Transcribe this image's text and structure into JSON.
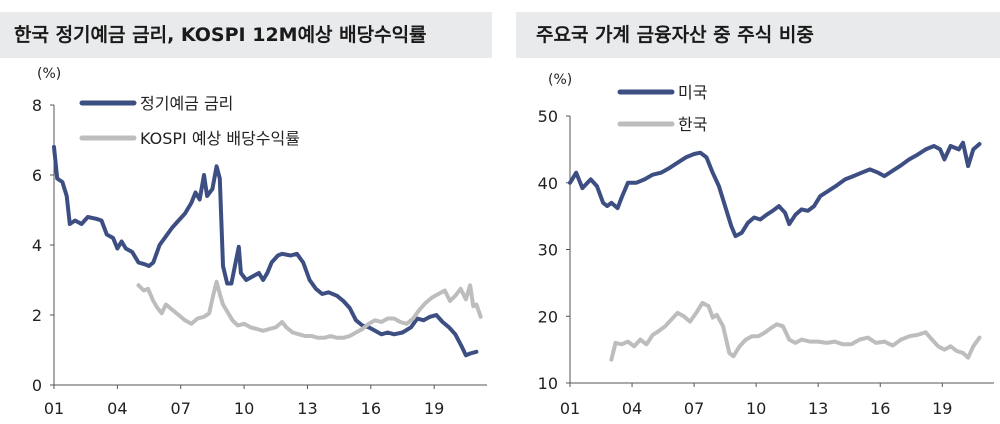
{
  "colors": {
    "korea_deposit": "#3d4f82",
    "kospi_yield": "#bdbdbd",
    "us": "#3d4f82",
    "korea": "#bdbdbd",
    "title_bg": "#e9eaec"
  },
  "chart_data": [
    {
      "type": "line",
      "title": "한국 정기예금 금리, KOSPI 12M예상 배당수익률",
      "ylabel": "(%)",
      "xlabel": "",
      "xlim": [
        2001,
        2021.5
      ],
      "ylim": [
        0,
        8
      ],
      "xticks": [
        "01",
        "04",
        "07",
        "10",
        "13",
        "16",
        "19"
      ],
      "yticks": [
        0,
        2,
        4,
        6,
        8
      ],
      "grid": false,
      "legend": "top-left",
      "series": [
        {
          "name": "정기예금 금리",
          "color": "#3d4f82",
          "points": [
            [
              2001.0,
              6.8
            ],
            [
              2001.15,
              5.9
            ],
            [
              2001.4,
              5.8
            ],
            [
              2001.6,
              5.4
            ],
            [
              2001.75,
              4.6
            ],
            [
              2002.0,
              4.7
            ],
            [
              2002.3,
              4.6
            ],
            [
              2002.6,
              4.8
            ],
            [
              2003.0,
              4.75
            ],
            [
              2003.25,
              4.7
            ],
            [
              2003.5,
              4.3
            ],
            [
              2003.8,
              4.2
            ],
            [
              2004.0,
              3.9
            ],
            [
              2004.2,
              4.1
            ],
            [
              2004.4,
              3.9
            ],
            [
              2004.7,
              3.8
            ],
            [
              2005.0,
              3.5
            ],
            [
              2005.3,
              3.45
            ],
            [
              2005.5,
              3.4
            ],
            [
              2005.7,
              3.5
            ],
            [
              2006.0,
              4.0
            ],
            [
              2006.3,
              4.25
            ],
            [
              2006.6,
              4.5
            ],
            [
              2006.9,
              4.7
            ],
            [
              2007.2,
              4.9
            ],
            [
              2007.5,
              5.2
            ],
            [
              2007.7,
              5.5
            ],
            [
              2007.9,
              5.3
            ],
            [
              2008.1,
              6.0
            ],
            [
              2008.25,
              5.4
            ],
            [
              2008.5,
              5.6
            ],
            [
              2008.7,
              6.25
            ],
            [
              2008.85,
              5.9
            ],
            [
              2009.0,
              3.4
            ],
            [
              2009.2,
              2.9
            ],
            [
              2009.4,
              2.9
            ],
            [
              2009.6,
              3.5
            ],
            [
              2009.75,
              3.95
            ],
            [
              2009.85,
              3.2
            ],
            [
              2010.1,
              3.0
            ],
            [
              2010.4,
              3.1
            ],
            [
              2010.7,
              3.2
            ],
            [
              2010.9,
              3.0
            ],
            [
              2011.1,
              3.2
            ],
            [
              2011.3,
              3.5
            ],
            [
              2011.6,
              3.7
            ],
            [
              2011.8,
              3.75
            ],
            [
              2012.2,
              3.7
            ],
            [
              2012.5,
              3.75
            ],
            [
              2012.8,
              3.5
            ],
            [
              2013.1,
              3.0
            ],
            [
              2013.4,
              2.75
            ],
            [
              2013.7,
              2.6
            ],
            [
              2014.0,
              2.65
            ],
            [
              2014.4,
              2.55
            ],
            [
              2014.7,
              2.4
            ],
            [
              2015.0,
              2.2
            ],
            [
              2015.3,
              1.85
            ],
            [
              2015.6,
              1.7
            ],
            [
              2015.9,
              1.65
            ],
            [
              2016.2,
              1.55
            ],
            [
              2016.5,
              1.45
            ],
            [
              2016.8,
              1.5
            ],
            [
              2017.1,
              1.45
            ],
            [
              2017.5,
              1.5
            ],
            [
              2017.9,
              1.65
            ],
            [
              2018.2,
              1.9
            ],
            [
              2018.5,
              1.85
            ],
            [
              2018.8,
              1.95
            ],
            [
              2019.1,
              2.0
            ],
            [
              2019.4,
              1.8
            ],
            [
              2019.7,
              1.65
            ],
            [
              2020.0,
              1.45
            ],
            [
              2020.3,
              1.1
            ],
            [
              2020.5,
              0.85
            ],
            [
              2020.7,
              0.9
            ],
            [
              2021.0,
              0.95
            ]
          ]
        },
        {
          "name": "KOSPI 예상 배당수익률",
          "color": "#bdbdbd",
          "points": [
            [
              2005.0,
              2.85
            ],
            [
              2005.25,
              2.7
            ],
            [
              2005.45,
              2.75
            ],
            [
              2005.7,
              2.4
            ],
            [
              2005.9,
              2.2
            ],
            [
              2006.1,
              2.05
            ],
            [
              2006.3,
              2.3
            ],
            [
              2006.6,
              2.15
            ],
            [
              2006.9,
              2.0
            ],
            [
              2007.2,
              1.85
            ],
            [
              2007.5,
              1.75
            ],
            [
              2007.8,
              1.9
            ],
            [
              2008.1,
              1.95
            ],
            [
              2008.35,
              2.05
            ],
            [
              2008.55,
              2.6
            ],
            [
              2008.7,
              2.95
            ],
            [
              2008.85,
              2.6
            ],
            [
              2009.0,
              2.3
            ],
            [
              2009.2,
              2.1
            ],
            [
              2009.45,
              1.85
            ],
            [
              2009.7,
              1.7
            ],
            [
              2010.0,
              1.75
            ],
            [
              2010.3,
              1.65
            ],
            [
              2010.6,
              1.6
            ],
            [
              2010.9,
              1.55
            ],
            [
              2011.2,
              1.6
            ],
            [
              2011.5,
              1.65
            ],
            [
              2011.8,
              1.8
            ],
            [
              2012.0,
              1.65
            ],
            [
              2012.3,
              1.5
            ],
            [
              2012.6,
              1.45
            ],
            [
              2012.9,
              1.4
            ],
            [
              2013.2,
              1.4
            ],
            [
              2013.5,
              1.35
            ],
            [
              2013.8,
              1.35
            ],
            [
              2014.1,
              1.4
            ],
            [
              2014.4,
              1.35
            ],
            [
              2014.7,
              1.35
            ],
            [
              2015.0,
              1.4
            ],
            [
              2015.3,
              1.5
            ],
            [
              2015.6,
              1.6
            ],
            [
              2015.9,
              1.75
            ],
            [
              2016.2,
              1.85
            ],
            [
              2016.5,
              1.8
            ],
            [
              2016.8,
              1.9
            ],
            [
              2017.1,
              1.9
            ],
            [
              2017.4,
              1.8
            ],
            [
              2017.7,
              1.75
            ],
            [
              2018.0,
              1.9
            ],
            [
              2018.3,
              2.15
            ],
            [
              2018.6,
              2.35
            ],
            [
              2018.9,
              2.5
            ],
            [
              2019.2,
              2.6
            ],
            [
              2019.5,
              2.7
            ],
            [
              2019.75,
              2.4
            ],
            [
              2020.0,
              2.55
            ],
            [
              2020.25,
              2.75
            ],
            [
              2020.5,
              2.45
            ],
            [
              2020.7,
              2.85
            ],
            [
              2020.85,
              2.25
            ],
            [
              2021.0,
              2.3
            ],
            [
              2021.2,
              1.95
            ]
          ]
        }
      ]
    },
    {
      "type": "line",
      "title": "주요국 가계 금융자산 중 주식 비중",
      "ylabel": "(%)",
      "xlabel": "",
      "xlim": [
        2001,
        2021.5
      ],
      "ylim": [
        10,
        50
      ],
      "xticks": [
        "01",
        "04",
        "07",
        "10",
        "13",
        "16",
        "19"
      ],
      "yticks": [
        10,
        20,
        30,
        40,
        50
      ],
      "grid": false,
      "legend": "top-left",
      "series": [
        {
          "name": "미국",
          "color": "#3d4f82",
          "points": [
            [
              2001.0,
              40.0
            ],
            [
              2001.3,
              41.5
            ],
            [
              2001.6,
              39.2
            ],
            [
              2002.0,
              40.5
            ],
            [
              2002.3,
              39.5
            ],
            [
              2002.6,
              37.0
            ],
            [
              2002.8,
              36.5
            ],
            [
              2003.0,
              37.0
            ],
            [
              2003.3,
              36.2
            ],
            [
              2003.5,
              37.8
            ],
            [
              2003.8,
              40.0
            ],
            [
              2004.2,
              40.0
            ],
            [
              2004.6,
              40.5
            ],
            [
              2005.0,
              41.2
            ],
            [
              2005.4,
              41.5
            ],
            [
              2005.8,
              42.2
            ],
            [
              2006.2,
              43.0
            ],
            [
              2006.6,
              43.8
            ],
            [
              2007.0,
              44.3
            ],
            [
              2007.3,
              44.5
            ],
            [
              2007.6,
              43.8
            ],
            [
              2007.9,
              41.5
            ],
            [
              2008.2,
              39.5
            ],
            [
              2008.5,
              36.5
            ],
            [
              2008.8,
              33.5
            ],
            [
              2009.0,
              32.0
            ],
            [
              2009.3,
              32.5
            ],
            [
              2009.6,
              34.0
            ],
            [
              2009.9,
              34.8
            ],
            [
              2010.2,
              34.5
            ],
            [
              2010.5,
              35.2
            ],
            [
              2010.8,
              35.8
            ],
            [
              2011.1,
              36.5
            ],
            [
              2011.4,
              35.5
            ],
            [
              2011.6,
              33.8
            ],
            [
              2011.9,
              35.2
            ],
            [
              2012.2,
              36.0
            ],
            [
              2012.5,
              35.8
            ],
            [
              2012.8,
              36.5
            ],
            [
              2013.1,
              38.0
            ],
            [
              2013.5,
              38.8
            ],
            [
              2013.9,
              39.6
            ],
            [
              2014.3,
              40.5
            ],
            [
              2014.7,
              41.0
            ],
            [
              2015.1,
              41.5
            ],
            [
              2015.5,
              42.0
            ],
            [
              2015.9,
              41.5
            ],
            [
              2016.2,
              41.0
            ],
            [
              2016.6,
              41.8
            ],
            [
              2017.0,
              42.6
            ],
            [
              2017.4,
              43.5
            ],
            [
              2017.8,
              44.2
            ],
            [
              2018.2,
              45.0
            ],
            [
              2018.6,
              45.5
            ],
            [
              2018.9,
              45.0
            ],
            [
              2019.1,
              43.5
            ],
            [
              2019.4,
              45.5
            ],
            [
              2019.8,
              45.0
            ],
            [
              2020.0,
              46.0
            ],
            [
              2020.25,
              42.5
            ],
            [
              2020.5,
              45.0
            ],
            [
              2020.8,
              45.8
            ]
          ]
        },
        {
          "name": "한국",
          "color": "#bdbdbd",
          "points": [
            [
              2003.0,
              13.5
            ],
            [
              2003.2,
              16.0
            ],
            [
              2003.5,
              15.8
            ],
            [
              2003.8,
              16.2
            ],
            [
              2004.1,
              15.5
            ],
            [
              2004.4,
              16.5
            ],
            [
              2004.7,
              15.8
            ],
            [
              2005.0,
              17.2
            ],
            [
              2005.3,
              17.8
            ],
            [
              2005.6,
              18.5
            ],
            [
              2005.9,
              19.5
            ],
            [
              2006.2,
              20.5
            ],
            [
              2006.5,
              20.0
            ],
            [
              2006.8,
              19.2
            ],
            [
              2007.1,
              20.5
            ],
            [
              2007.4,
              22.0
            ],
            [
              2007.7,
              21.5
            ],
            [
              2007.9,
              19.8
            ],
            [
              2008.1,
              20.2
            ],
            [
              2008.4,
              18.5
            ],
            [
              2008.7,
              14.5
            ],
            [
              2008.9,
              14.0
            ],
            [
              2009.2,
              15.5
            ],
            [
              2009.5,
              16.5
            ],
            [
              2009.8,
              17.0
            ],
            [
              2010.1,
              17.0
            ],
            [
              2010.4,
              17.5
            ],
            [
              2010.7,
              18.2
            ],
            [
              2011.0,
              18.8
            ],
            [
              2011.3,
              18.5
            ],
            [
              2011.6,
              16.5
            ],
            [
              2011.9,
              16.0
            ],
            [
              2012.2,
              16.5
            ],
            [
              2012.6,
              16.2
            ],
            [
              2013.0,
              16.2
            ],
            [
              2013.4,
              16.0
            ],
            [
              2013.8,
              16.2
            ],
            [
              2014.2,
              15.8
            ],
            [
              2014.6,
              15.8
            ],
            [
              2015.0,
              16.5
            ],
            [
              2015.4,
              16.8
            ],
            [
              2015.8,
              16.0
            ],
            [
              2016.2,
              16.2
            ],
            [
              2016.6,
              15.6
            ],
            [
              2017.0,
              16.5
            ],
            [
              2017.4,
              17.0
            ],
            [
              2017.8,
              17.2
            ],
            [
              2018.2,
              17.6
            ],
            [
              2018.5,
              16.5
            ],
            [
              2018.8,
              15.5
            ],
            [
              2019.1,
              15.0
            ],
            [
              2019.4,
              15.5
            ],
            [
              2019.7,
              14.8
            ],
            [
              2020.0,
              14.5
            ],
            [
              2020.25,
              13.8
            ],
            [
              2020.5,
              15.5
            ],
            [
              2020.8,
              16.8
            ]
          ]
        }
      ]
    }
  ]
}
